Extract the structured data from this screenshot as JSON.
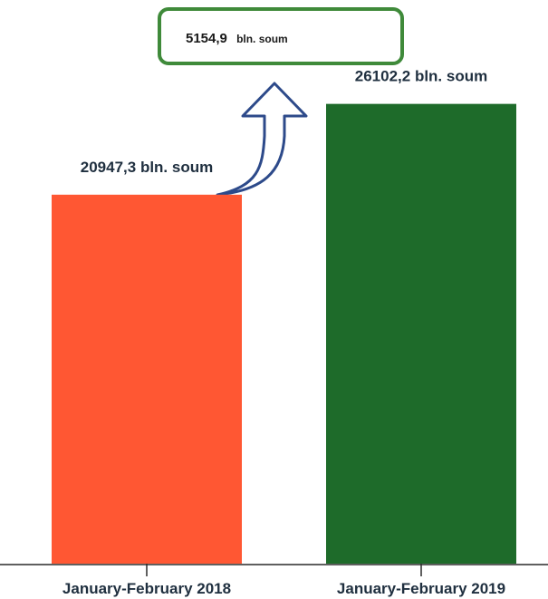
{
  "chart_data": {
    "type": "bar",
    "categories": [
      "January-February 2018",
      "January-February 2019"
    ],
    "values": [
      20947.3,
      26102.2
    ],
    "data_labels": [
      "20947,3 bln. soum",
      "26102,2 bln. soum"
    ],
    "colors": [
      "#ff5733",
      "#1e6b2a"
    ],
    "ylim": [
      0,
      32000
    ],
    "title": "",
    "xlabel": "",
    "ylabel": "",
    "grid": false,
    "annotation": {
      "value_text": "5154,9",
      "unit_text": "bln. soum",
      "difference": 5154.9,
      "border_color": "#3f8a3a",
      "arrow_color": "#2d4a8a"
    }
  }
}
